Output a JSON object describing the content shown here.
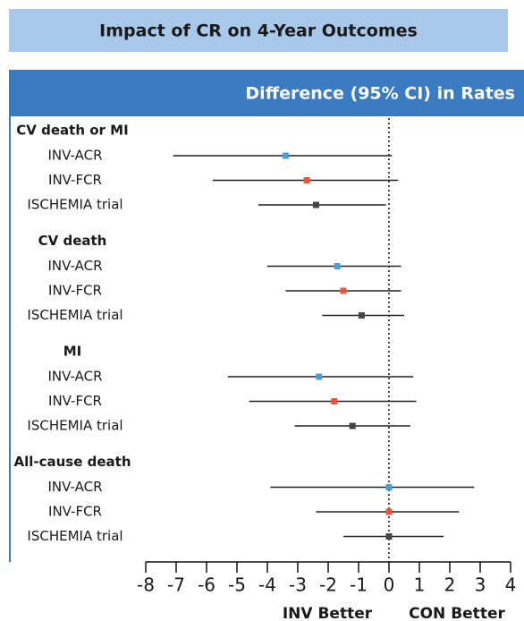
{
  "chart_data": {
    "type": "forest",
    "title": "Impact of CR on 4-Year Outcomes",
    "header": "Difference (95% CI) in Rates",
    "xlim": [
      -8,
      4
    ],
    "xticks": [
      -8,
      -7,
      -6,
      -5,
      -4,
      -3,
      -2,
      -1,
      0,
      1,
      2,
      3,
      4
    ],
    "left_label": "INV Better",
    "right_label": "CON Better",
    "groups": [
      {
        "name": "CV death or MI",
        "rows": [
          {
            "label": "INV-ACR",
            "color": "#4a9fd5",
            "estimate": -3.4,
            "lower": -7.1,
            "upper": 0.1
          },
          {
            "label": "INV-FCR",
            "color": "#e8553a",
            "estimate": -2.7,
            "lower": -5.8,
            "upper": 0.3
          },
          {
            "label": "ISCHEMIA trial",
            "color": "#444444",
            "estimate": -2.4,
            "lower": -4.3,
            "upper": -0.1
          }
        ]
      },
      {
        "name": "CV death",
        "rows": [
          {
            "label": "INV-ACR",
            "color": "#4a9fd5",
            "estimate": -1.7,
            "lower": -4.0,
            "upper": 0.4
          },
          {
            "label": "INV-FCR",
            "color": "#e8553a",
            "estimate": -1.5,
            "lower": -3.4,
            "upper": 0.4
          },
          {
            "label": "ISCHEMIA trial",
            "color": "#444444",
            "estimate": -0.9,
            "lower": -2.2,
            "upper": 0.5
          }
        ]
      },
      {
        "name": "MI",
        "rows": [
          {
            "label": "INV-ACR",
            "color": "#4a9fd5",
            "estimate": -2.3,
            "lower": -5.3,
            "upper": 0.8
          },
          {
            "label": "INV-FCR",
            "color": "#e8553a",
            "estimate": -1.8,
            "lower": -4.6,
            "upper": 0.9
          },
          {
            "label": "ISCHEMIA trial",
            "color": "#444444",
            "estimate": -1.2,
            "lower": -3.1,
            "upper": 0.7
          }
        ]
      },
      {
        "name": "All-cause death",
        "rows": [
          {
            "label": "INV-ACR",
            "color": "#4a9fd5",
            "estimate": 0.0,
            "lower": -3.9,
            "upper": 2.8
          },
          {
            "label": "INV-FCR",
            "color": "#e8553a",
            "estimate": 0.0,
            "lower": -2.4,
            "upper": 2.3
          },
          {
            "label": "ISCHEMIA trial",
            "color": "#444444",
            "estimate": 0.0,
            "lower": -1.5,
            "upper": 1.8
          }
        ]
      }
    ]
  }
}
